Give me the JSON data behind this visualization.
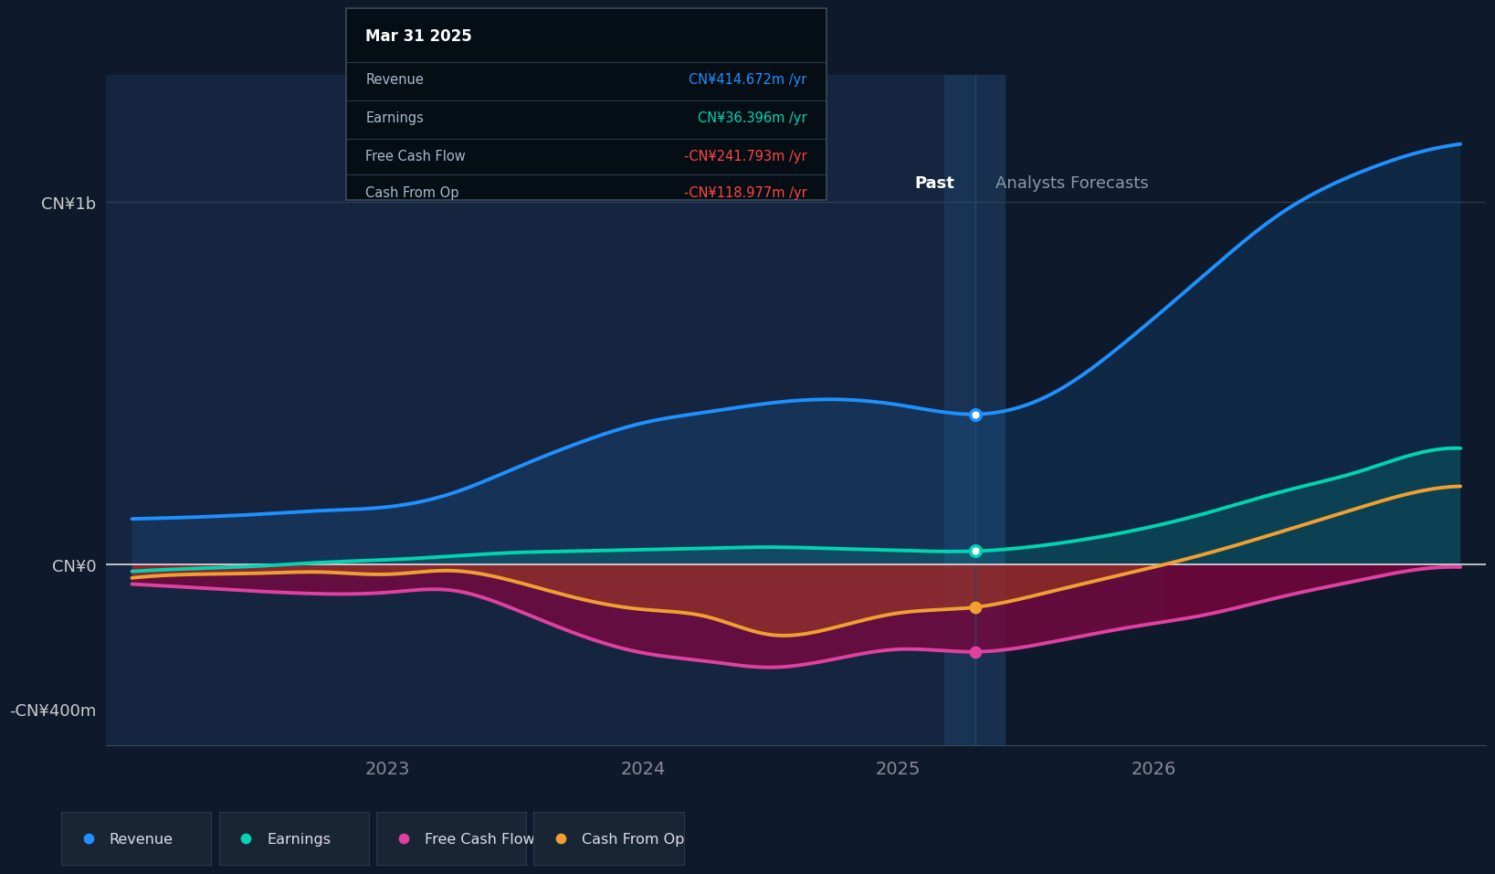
{
  "bg_color": "#0e1a2b",
  "plot_bg_color": "#0e1a2b",
  "divider_x": 2025.3,
  "ylim": [
    -500,
    1350
  ],
  "xlim": [
    2021.9,
    2027.3
  ],
  "revenue_color": "#1e90ff",
  "earnings_color": "#00d4b0",
  "fcf_color": "#e040a0",
  "cashop_color": "#f0a030",
  "tooltip_title": "Mar 31 2025",
  "tooltip_revenue_label": "Revenue",
  "tooltip_revenue_val": "CN¥414.672m /yr",
  "tooltip_revenue_color": "#1e90ff",
  "tooltip_earnings_label": "Earnings",
  "tooltip_earnings_val": "CN¥36.396m /yr",
  "tooltip_earnings_color": "#00d4b0",
  "tooltip_fcf_label": "Free Cash Flow",
  "tooltip_fcf_val": "-CN¥241.793m /yr",
  "tooltip_fcf_color": "#ff4444",
  "tooltip_cashop_label": "Cash From Op",
  "tooltip_cashop_val": "-CN¥118.977m /yr",
  "tooltip_cashop_color": "#ff4444",
  "past_label": "Past",
  "forecast_label": "Analysts Forecasts",
  "legend_items": [
    "Revenue",
    "Earnings",
    "Free Cash Flow",
    "Cash From Op"
  ],
  "legend_colors": [
    "#1e90ff",
    "#00d4b0",
    "#e040a0",
    "#f0a030"
  ],
  "ytick_vals": [
    1000,
    0,
    -400
  ],
  "ytick_labels": [
    "CN¥1b",
    "CN¥0",
    "-CN¥400m"
  ],
  "xtick_vals": [
    2023,
    2024,
    2025,
    2026
  ],
  "xtick_labels": [
    "2023",
    "2024",
    "2025",
    "2026"
  ],
  "x_revenue": [
    2022.0,
    2022.25,
    2022.5,
    2022.75,
    2023.0,
    2023.25,
    2023.5,
    2023.75,
    2024.0,
    2024.25,
    2024.5,
    2024.75,
    2025.0,
    2025.3,
    2025.6,
    2025.9,
    2026.2,
    2026.5,
    2026.8,
    2027.0,
    2027.2
  ],
  "y_revenue": [
    125,
    130,
    138,
    148,
    158,
    195,
    265,
    335,
    390,
    420,
    445,
    455,
    440,
    414,
    470,
    620,
    800,
    970,
    1080,
    1130,
    1160
  ],
  "x_earnings": [
    2022.0,
    2022.25,
    2022.5,
    2022.75,
    2023.0,
    2023.25,
    2023.5,
    2023.75,
    2024.0,
    2024.25,
    2024.5,
    2024.75,
    2025.0,
    2025.3,
    2025.6,
    2025.9,
    2026.2,
    2026.5,
    2026.8,
    2027.0,
    2027.2
  ],
  "y_earnings": [
    -20,
    -12,
    -5,
    5,
    12,
    22,
    32,
    36,
    40,
    44,
    47,
    43,
    38,
    36,
    55,
    90,
    140,
    200,
    255,
    300,
    320
  ],
  "x_fcf": [
    2022.0,
    2022.25,
    2022.5,
    2022.75,
    2023.0,
    2023.25,
    2023.5,
    2023.75,
    2024.0,
    2024.25,
    2024.5,
    2024.75,
    2025.0,
    2025.3,
    2025.6,
    2025.9,
    2026.2,
    2026.5,
    2026.8,
    2027.0,
    2027.2
  ],
  "y_fcf": [
    -55,
    -65,
    -75,
    -82,
    -78,
    -72,
    -125,
    -195,
    -245,
    -268,
    -285,
    -262,
    -235,
    -242,
    -215,
    -175,
    -140,
    -90,
    -45,
    -18,
    -8
  ],
  "x_cashop": [
    2022.0,
    2022.25,
    2022.5,
    2022.75,
    2023.0,
    2023.25,
    2023.5,
    2023.75,
    2024.0,
    2024.25,
    2024.5,
    2024.75,
    2025.0,
    2025.3,
    2025.6,
    2025.9,
    2026.2,
    2026.5,
    2026.8,
    2027.0,
    2027.2
  ],
  "y_cashop": [
    -38,
    -28,
    -25,
    -22,
    -28,
    -18,
    -48,
    -95,
    -125,
    -145,
    -195,
    -175,
    -135,
    -119,
    -75,
    -25,
    28,
    90,
    155,
    195,
    215
  ],
  "dot_x": 2025.3
}
